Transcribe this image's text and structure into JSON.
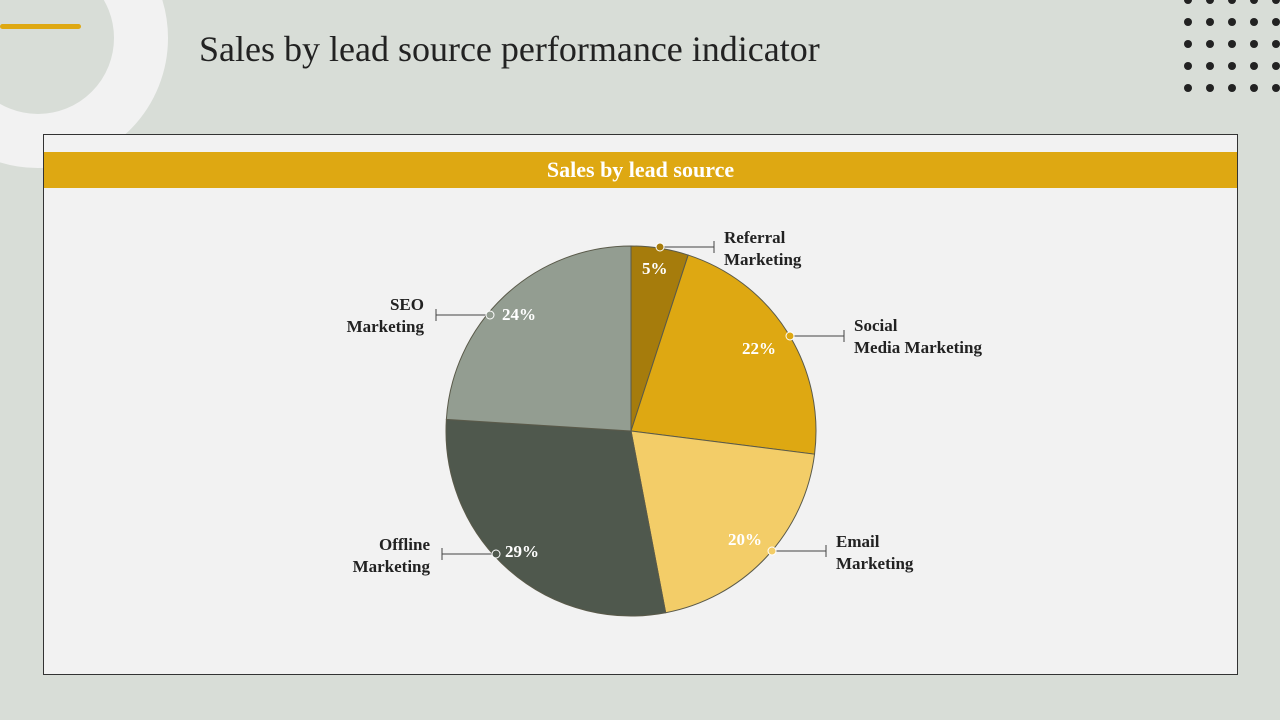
{
  "page_title": "Sales by lead source performance indicator",
  "chart_data": {
    "type": "pie",
    "title": "Sales by lead source",
    "categories": [
      "Referral Marketing",
      "Social Media Marketing",
      "Email Marketing",
      "Offline Marketing",
      "SEO Marketing"
    ],
    "values": [
      5,
      22,
      20,
      29,
      24
    ],
    "value_labels": [
      "5%",
      "22%",
      "20%",
      "29%",
      "24%"
    ],
    "colors": [
      "#a67c0c",
      "#dea812",
      "#f3cd68",
      "#4f584d",
      "#939d91"
    ],
    "label_lines": [
      [
        "Referral",
        "Marketing"
      ],
      [
        "Social",
        "Media Marketing"
      ],
      [
        "Email",
        "Marketing"
      ],
      [
        "Offline",
        "Marketing"
      ],
      [
        "SEO",
        "Marketing"
      ]
    ]
  }
}
